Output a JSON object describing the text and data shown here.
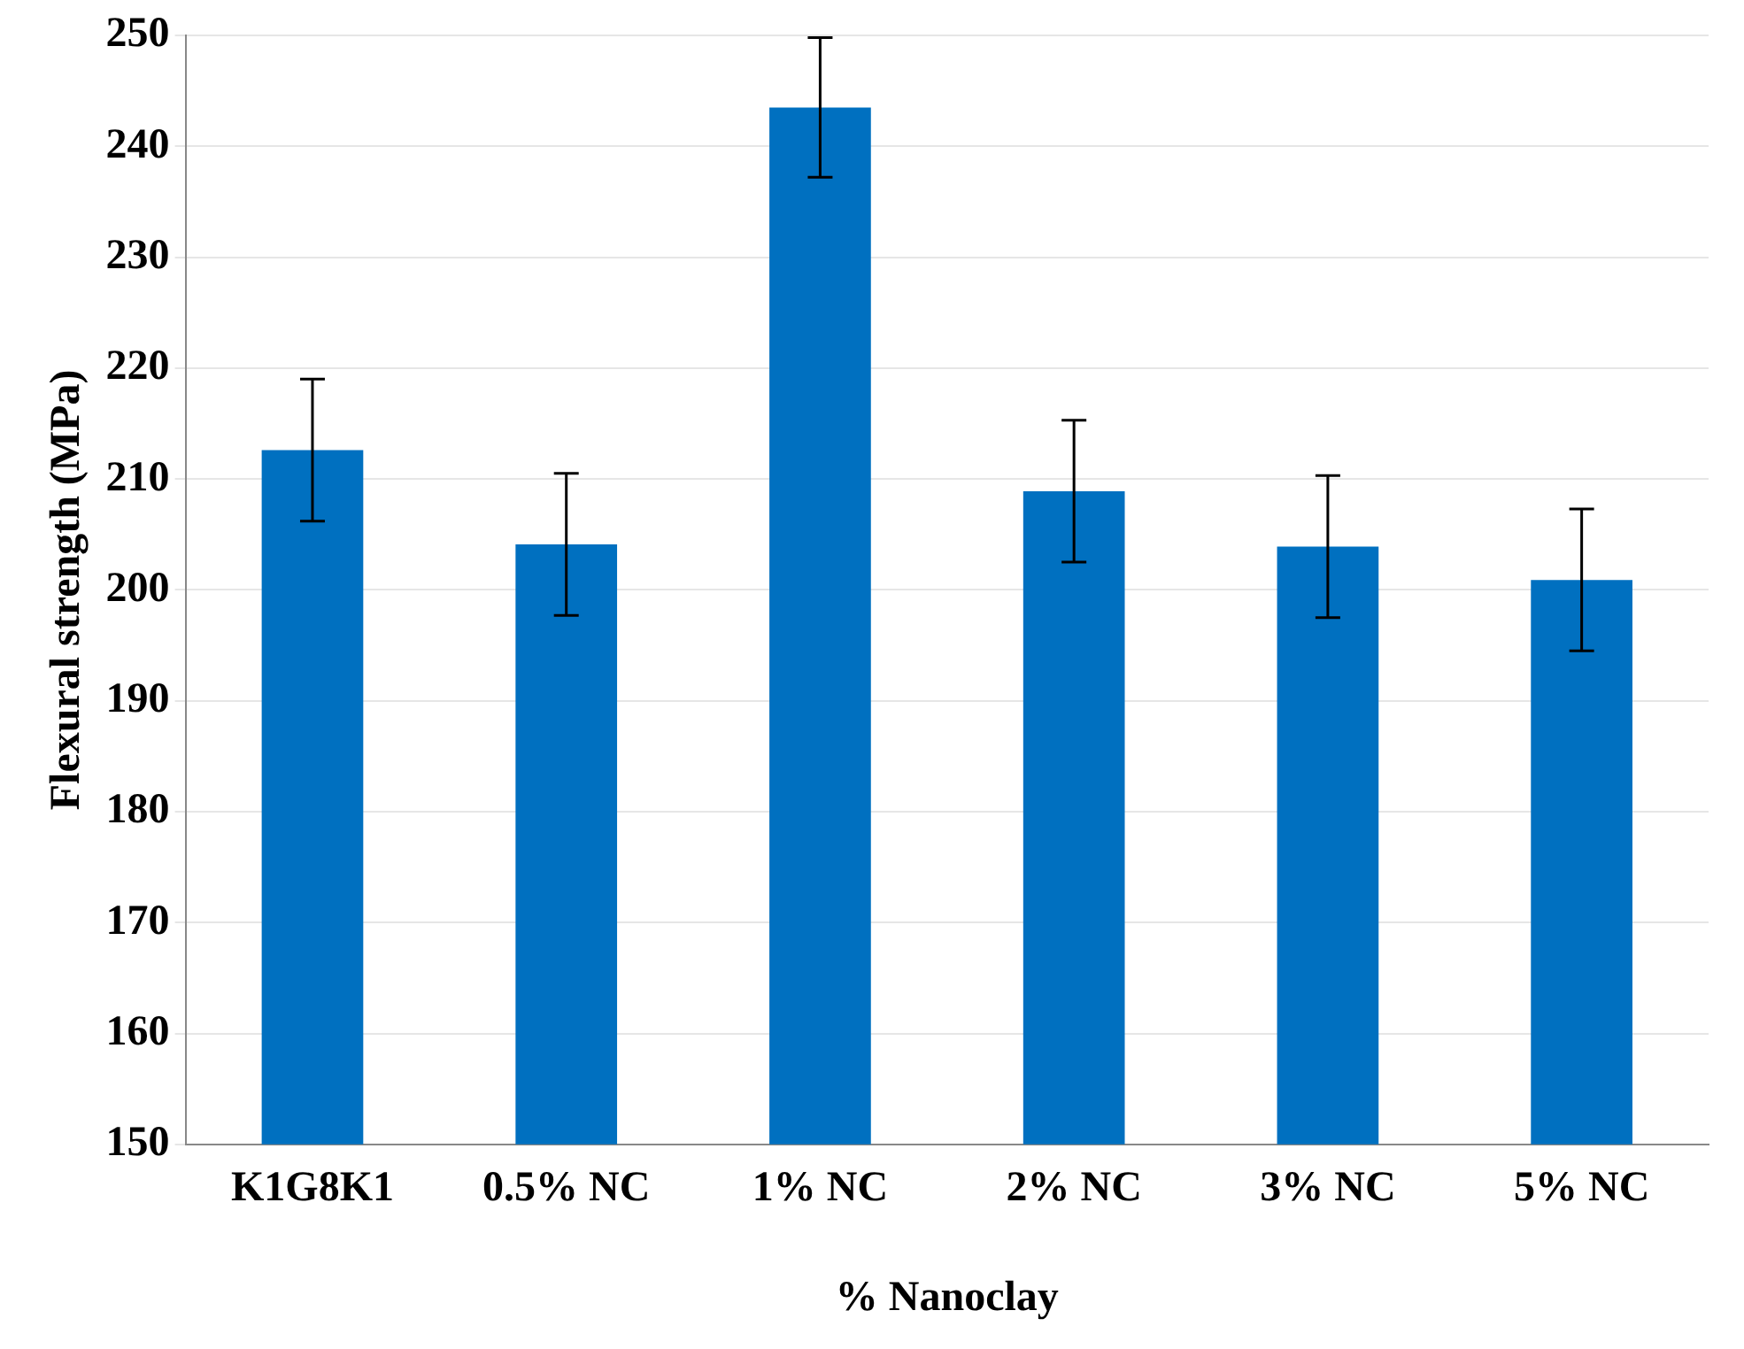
{
  "chart_data": {
    "type": "bar",
    "xlabel": "% Nanoclay",
    "ylabel": "Flexural strength (MPa)",
    "categories": [
      "K1G8K1",
      "0.5% NC",
      "1% NC",
      "2% NC",
      "3% NC",
      "5% NC"
    ],
    "values": [
      212.6,
      204.1,
      243.5,
      208.9,
      203.9,
      200.9
    ],
    "errors": [
      6.4,
      6.4,
      6.3,
      6.4,
      6.4,
      6.4
    ],
    "color": "#0070c0",
    "ylim": [
      150,
      250
    ],
    "yticks": [
      150,
      160,
      170,
      180,
      190,
      200,
      210,
      220,
      230,
      240,
      250
    ],
    "grid": "y"
  }
}
